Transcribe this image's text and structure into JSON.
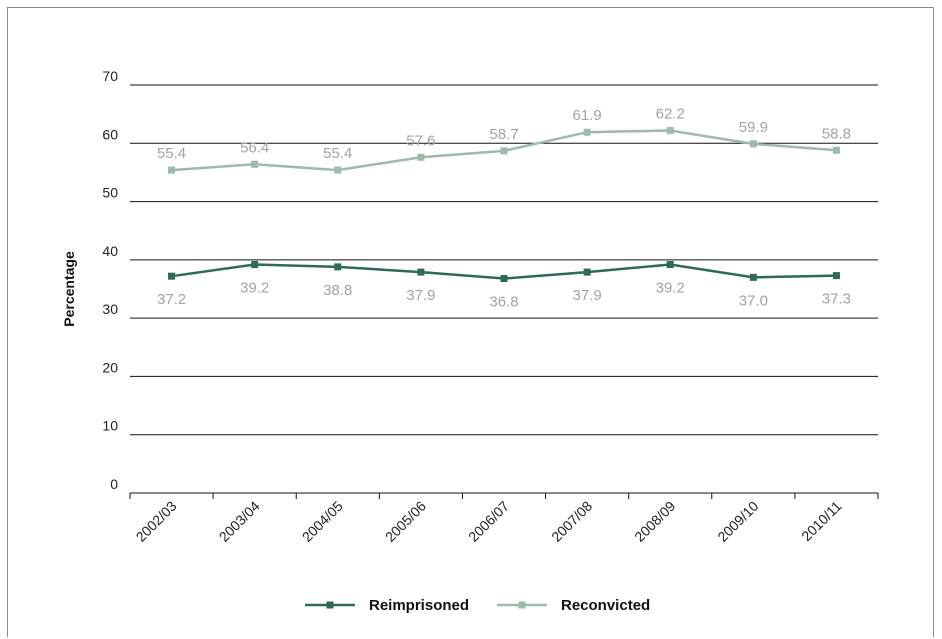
{
  "chart_data": {
    "type": "line",
    "title": "",
    "xlabel": "",
    "ylabel": "Percentage",
    "ylim": [
      0,
      70
    ],
    "yticks": [
      0,
      10,
      20,
      30,
      40,
      50,
      60,
      70
    ],
    "categories": [
      "2002/03",
      "2003/04",
      "2004/05",
      "2005/06",
      "2006/07",
      "2007/08",
      "2008/09",
      "2009/10",
      "2010/11"
    ],
    "grid": true,
    "legend_position": "bottom",
    "series": [
      {
        "name": "Reimprisoned",
        "color": "#2d6b52",
        "values": [
          37.2,
          39.2,
          38.8,
          37.9,
          36.8,
          37.9,
          39.2,
          37.0,
          37.3
        ],
        "labels": [
          "37.2",
          "39.2",
          "38.8",
          "37.9",
          "36.8",
          "37.9",
          "39.2",
          "37.0",
          "37.3"
        ]
      },
      {
        "name": "Reconvicted",
        "color": "#9dbbaa",
        "values": [
          55.4,
          56.4,
          55.4,
          57.6,
          58.7,
          61.9,
          62.2,
          59.9,
          58.8
        ],
        "labels": [
          "55.4",
          "56.4",
          "55.4",
          "57.6",
          "58.7",
          "61.9",
          "62.2",
          "59.9",
          "58.8"
        ]
      }
    ]
  }
}
